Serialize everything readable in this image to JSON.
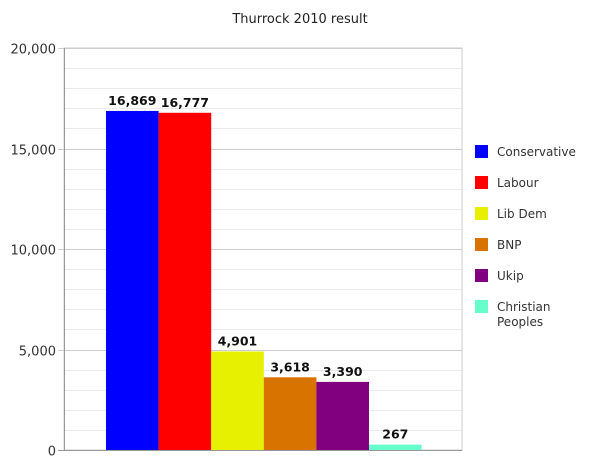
{
  "chart_data": {
    "type": "bar",
    "title": "Thurrock 2010 result",
    "xlabel": "",
    "ylabel": "",
    "ylim": [
      0,
      20000
    ],
    "y_ticks": [
      0,
      5000,
      10000,
      15000,
      20000
    ],
    "y_tick_labels": [
      "0",
      "5,000",
      "10,000",
      "15,000",
      "20,000"
    ],
    "grid": true,
    "legend_position": "right",
    "series": [
      {
        "name": "Conservative",
        "value": 16869,
        "label": "16,869",
        "color": "#0000ff"
      },
      {
        "name": "Labour",
        "value": 16777,
        "label": "16,777",
        "color": "#ff0000"
      },
      {
        "name": "Lib Dem",
        "value": 4901,
        "label": "4,901",
        "color": "#e6f000"
      },
      {
        "name": "BNP",
        "value": 3618,
        "label": "3,618",
        "color": "#d97300"
      },
      {
        "name": "Ukip",
        "value": 3390,
        "label": "3,390",
        "color": "#800080"
      },
      {
        "name": "Christian Peoples",
        "value": 267,
        "label": "267",
        "color": "#66ffcc"
      }
    ]
  }
}
